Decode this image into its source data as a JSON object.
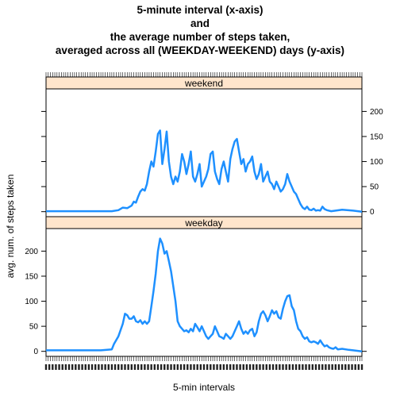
{
  "chart_data": {
    "type": "line",
    "layout": "lattice panels stacked vertically, shared x axis",
    "title_lines": [
      "5-minute interval (x-axis)",
      "and",
      "the average number of steps taken,",
      "averaged across all (WEEKDAY-WEEKEND) days (y-axis)"
    ],
    "xlabel": "5-min intervals",
    "ylabel": "avg. num. of steps taken",
    "xlim": [
      0,
      288
    ],
    "ylim": [
      -10,
      245
    ],
    "y_ticks": [
      0,
      50,
      100,
      150,
      200
    ],
    "x_tick_count": 288,
    "x_tick_labels": "dense overlapping interval labels (illegible)",
    "line_color": "#1E90FF",
    "strip_color": "#FFE5CC",
    "panels": [
      {
        "strip_label": "weekend",
        "y_axis_side": "right",
        "points": [
          [
            0,
            1
          ],
          [
            60,
            1
          ],
          [
            66,
            3
          ],
          [
            70,
            8
          ],
          [
            74,
            7
          ],
          [
            78,
            12
          ],
          [
            80,
            20
          ],
          [
            82,
            18
          ],
          [
            84,
            30
          ],
          [
            86,
            40
          ],
          [
            88,
            45
          ],
          [
            90,
            42
          ],
          [
            92,
            55
          ],
          [
            94,
            80
          ],
          [
            96,
            100
          ],
          [
            98,
            90
          ],
          [
            100,
            120
          ],
          [
            102,
            155
          ],
          [
            104,
            162
          ],
          [
            106,
            95
          ],
          [
            108,
            125
          ],
          [
            110,
            160
          ],
          [
            112,
            100
          ],
          [
            114,
            70
          ],
          [
            116,
            55
          ],
          [
            118,
            70
          ],
          [
            120,
            60
          ],
          [
            122,
            80
          ],
          [
            124,
            115
          ],
          [
            126,
            100
          ],
          [
            128,
            75
          ],
          [
            130,
            95
          ],
          [
            132,
            120
          ],
          [
            134,
            70
          ],
          [
            136,
            60
          ],
          [
            138,
            75
          ],
          [
            140,
            95
          ],
          [
            142,
            50
          ],
          [
            144,
            60
          ],
          [
            146,
            70
          ],
          [
            148,
            85
          ],
          [
            150,
            115
          ],
          [
            152,
            120
          ],
          [
            154,
            80
          ],
          [
            156,
            65
          ],
          [
            158,
            55
          ],
          [
            160,
            85
          ],
          [
            162,
            100
          ],
          [
            164,
            80
          ],
          [
            166,
            60
          ],
          [
            168,
            105
          ],
          [
            170,
            125
          ],
          [
            172,
            140
          ],
          [
            174,
            145
          ],
          [
            176,
            120
          ],
          [
            178,
            95
          ],
          [
            180,
            105
          ],
          [
            182,
            80
          ],
          [
            184,
            95
          ],
          [
            186,
            100
          ],
          [
            188,
            110
          ],
          [
            190,
            80
          ],
          [
            192,
            65
          ],
          [
            194,
            75
          ],
          [
            196,
            95
          ],
          [
            198,
            60
          ],
          [
            200,
            70
          ],
          [
            202,
            80
          ],
          [
            204,
            60
          ],
          [
            206,
            55
          ],
          [
            208,
            45
          ],
          [
            210,
            60
          ],
          [
            212,
            50
          ],
          [
            214,
            40
          ],
          [
            216,
            45
          ],
          [
            218,
            55
          ],
          [
            220,
            75
          ],
          [
            222,
            60
          ],
          [
            224,
            50
          ],
          [
            226,
            40
          ],
          [
            228,
            35
          ],
          [
            230,
            25
          ],
          [
            232,
            15
          ],
          [
            234,
            8
          ],
          [
            236,
            5
          ],
          [
            238,
            10
          ],
          [
            240,
            4
          ],
          [
            242,
            3
          ],
          [
            244,
            6
          ],
          [
            246,
            2
          ],
          [
            248,
            3
          ],
          [
            250,
            2
          ],
          [
            252,
            10
          ],
          [
            254,
            5
          ],
          [
            256,
            3
          ],
          [
            260,
            1
          ],
          [
            270,
            4
          ],
          [
            280,
            2
          ],
          [
            288,
            0
          ]
        ]
      },
      {
        "strip_label": "weekday",
        "y_axis_side": "left",
        "points": [
          [
            0,
            2
          ],
          [
            50,
            2
          ],
          [
            60,
            4
          ],
          [
            62,
            15
          ],
          [
            66,
            30
          ],
          [
            70,
            55
          ],
          [
            72,
            75
          ],
          [
            74,
            72
          ],
          [
            76,
            65
          ],
          [
            78,
            65
          ],
          [
            80,
            70
          ],
          [
            82,
            60
          ],
          [
            84,
            58
          ],
          [
            86,
            62
          ],
          [
            88,
            55
          ],
          [
            90,
            60
          ],
          [
            92,
            55
          ],
          [
            94,
            60
          ],
          [
            96,
            90
          ],
          [
            98,
            120
          ],
          [
            100,
            155
          ],
          [
            102,
            200
          ],
          [
            104,
            225
          ],
          [
            106,
            215
          ],
          [
            108,
            195
          ],
          [
            110,
            200
          ],
          [
            112,
            180
          ],
          [
            114,
            160
          ],
          [
            116,
            130
          ],
          [
            118,
            100
          ],
          [
            120,
            60
          ],
          [
            122,
            50
          ],
          [
            124,
            45
          ],
          [
            126,
            40
          ],
          [
            128,
            42
          ],
          [
            130,
            38
          ],
          [
            132,
            45
          ],
          [
            134,
            40
          ],
          [
            136,
            55
          ],
          [
            138,
            48
          ],
          [
            140,
            40
          ],
          [
            142,
            50
          ],
          [
            144,
            40
          ],
          [
            146,
            30
          ],
          [
            148,
            25
          ],
          [
            150,
            30
          ],
          [
            152,
            35
          ],
          [
            154,
            50
          ],
          [
            156,
            40
          ],
          [
            158,
            30
          ],
          [
            160,
            28
          ],
          [
            162,
            25
          ],
          [
            164,
            35
          ],
          [
            166,
            30
          ],
          [
            168,
            25
          ],
          [
            170,
            30
          ],
          [
            172,
            40
          ],
          [
            174,
            50
          ],
          [
            176,
            60
          ],
          [
            178,
            45
          ],
          [
            180,
            35
          ],
          [
            182,
            40
          ],
          [
            184,
            35
          ],
          [
            186,
            42
          ],
          [
            188,
            45
          ],
          [
            190,
            30
          ],
          [
            192,
            38
          ],
          [
            194,
            60
          ],
          [
            196,
            75
          ],
          [
            198,
            80
          ],
          [
            200,
            72
          ],
          [
            202,
            60
          ],
          [
            204,
            70
          ],
          [
            206,
            82
          ],
          [
            208,
            75
          ],
          [
            210,
            80
          ],
          [
            212,
            68
          ],
          [
            214,
            65
          ],
          [
            216,
            85
          ],
          [
            218,
            100
          ],
          [
            220,
            110
          ],
          [
            222,
            112
          ],
          [
            224,
            90
          ],
          [
            226,
            82
          ],
          [
            228,
            60
          ],
          [
            230,
            45
          ],
          [
            232,
            40
          ],
          [
            234,
            30
          ],
          [
            236,
            25
          ],
          [
            238,
            28
          ],
          [
            240,
            20
          ],
          [
            242,
            18
          ],
          [
            244,
            20
          ],
          [
            246,
            18
          ],
          [
            248,
            15
          ],
          [
            250,
            22
          ],
          [
            252,
            15
          ],
          [
            254,
            10
          ],
          [
            256,
            12
          ],
          [
            258,
            8
          ],
          [
            260,
            6
          ],
          [
            262,
            5
          ],
          [
            264,
            8
          ],
          [
            266,
            4
          ],
          [
            270,
            5
          ],
          [
            276,
            3
          ],
          [
            280,
            2
          ],
          [
            288,
            0
          ]
        ]
      }
    ]
  }
}
